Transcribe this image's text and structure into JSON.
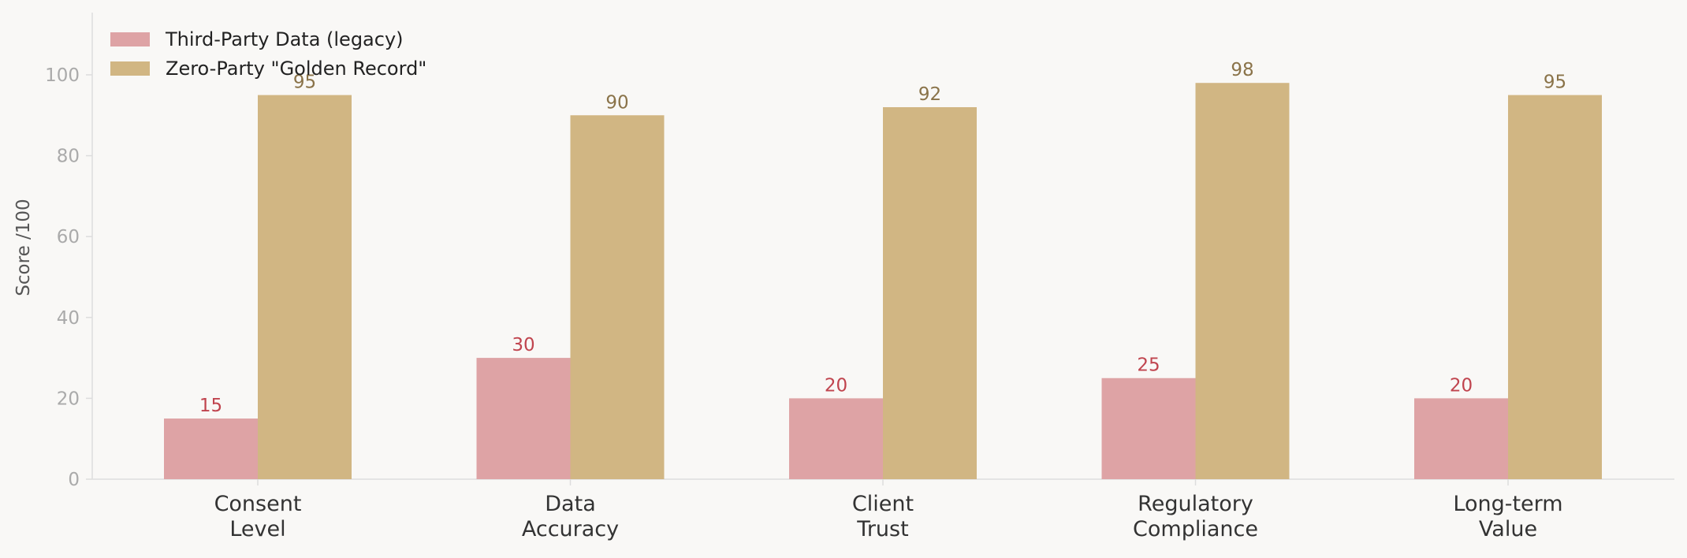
{
  "chart_data": {
    "type": "bar",
    "title": "",
    "xlabel": "",
    "ylabel": "Score /100",
    "categories": [
      [
        "Consent",
        "Level"
      ],
      [
        "Data",
        "Accuracy"
      ],
      [
        "Client",
        "Trust"
      ],
      [
        "Regulatory",
        "Compliance"
      ],
      [
        "Long-term",
        "Value"
      ]
    ],
    "series": [
      {
        "name": "Third-Party Data (legacy)",
        "values": [
          15,
          30,
          20,
          25,
          20
        ],
        "color": "#dea3a5",
        "label_color": "#c0444e"
      },
      {
        "name": "Zero-Party \"Golden Record\"",
        "values": [
          95,
          90,
          92,
          98,
          95
        ],
        "color": "#d1b683",
        "label_color": "#8a7349"
      }
    ],
    "ylim": [
      0,
      115
    ],
    "yticks": [
      0,
      20,
      40,
      60,
      80,
      100
    ],
    "grid": false,
    "legend": "top-left",
    "colors": {
      "background": "#f9f8f6",
      "axis": "#dddddd",
      "tick_text": "#aaaaaa",
      "category_text": "#333333",
      "ylabel_text": "#555555",
      "legend_text": "#222222"
    }
  }
}
